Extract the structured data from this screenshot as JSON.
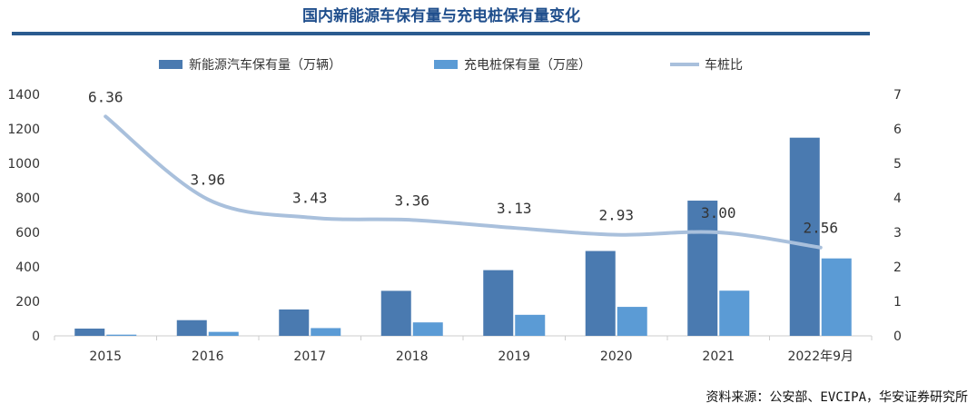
{
  "title": "国内新能源车保有量与充电桩保有量变化",
  "source": "资料来源：公安部、EVCIPA，华安证券研究所",
  "colors": {
    "title": "#1f4e8c",
    "rule": "#2a5b8f",
    "ev": "#4a7ab0",
    "charger": "#5b9bd5",
    "ratio": "#a9c0dc",
    "axis": "#cccccc"
  },
  "chart_data": {
    "type": "bar",
    "categories": [
      "2015",
      "2016",
      "2017",
      "2018",
      "2019",
      "2020",
      "2021",
      "2022年9月"
    ],
    "series": [
      {
        "name": "新能源汽车保有量（万辆）",
        "type": "bar",
        "axis": "left",
        "values": [
          42,
          91,
          153,
          261,
          381,
          492,
          784,
          1149
        ]
      },
      {
        "name": "充电桩保有量（万座）",
        "type": "bar",
        "axis": "left",
        "values": [
          7,
          23,
          45,
          78,
          122,
          168,
          262,
          449
        ]
      },
      {
        "name": "车桩比",
        "type": "line",
        "axis": "right",
        "values": [
          6.36,
          3.96,
          3.43,
          3.36,
          3.13,
          2.93,
          3.0,
          2.56
        ],
        "labels": [
          "6.36",
          "3.96",
          "3.43",
          "3.36",
          "3.13",
          "2.93",
          "3.00",
          "2.56"
        ]
      }
    ],
    "ylim": [
      0,
      1400
    ],
    "yticks": [
      "0",
      "200",
      "400",
      "600",
      "800",
      "1000",
      "1200",
      "1400"
    ],
    "y2lim": [
      0,
      7
    ],
    "y2ticks": [
      "0",
      "1",
      "2",
      "3",
      "4",
      "5",
      "6",
      "7"
    ],
    "legend_position": "top",
    "grid": false
  }
}
